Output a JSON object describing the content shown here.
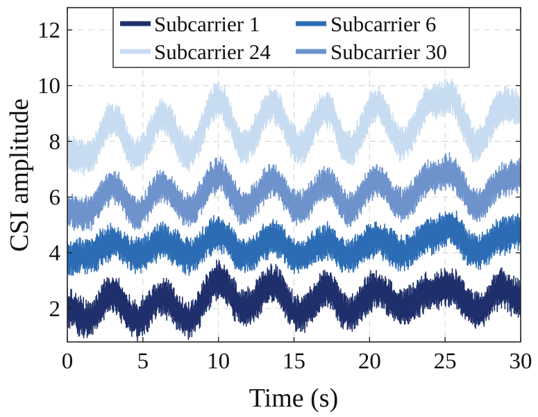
{
  "chart_data": {
    "type": "line",
    "title": "",
    "xlabel": "Time (s)",
    "ylabel": "CSI amplitude",
    "xlim": [
      0,
      30
    ],
    "ylim": [
      0.8,
      12.8
    ],
    "xticks": [
      0,
      5,
      10,
      15,
      20,
      25,
      30
    ],
    "yticks": [
      2,
      4,
      6,
      8,
      10,
      12
    ],
    "xtick_labels": [
      "0",
      "5",
      "10",
      "15",
      "20",
      "25",
      "30"
    ],
    "ytick_labels": [
      "2",
      "4",
      "6",
      "8",
      "10",
      "12"
    ],
    "grid": true,
    "legend_position": "top",
    "series": [
      {
        "name": "Subcarrier 1",
        "color": "#1f2f6b",
        "x": [
          0,
          1.3,
          3.0,
          4.6,
          6.3,
          8.0,
          10.0,
          11.7,
          13.6,
          15.3,
          17.2,
          18.6,
          20.5,
          22.2,
          24.0,
          25.3,
          27.1,
          28.8,
          30
        ],
        "center": [
          2.0,
          1.6,
          2.5,
          1.6,
          2.4,
          1.6,
          3.0,
          2.0,
          2.9,
          1.8,
          2.7,
          1.8,
          2.7,
          2.0,
          2.6,
          2.8,
          1.9,
          2.7,
          2.3
        ],
        "band_half_width": 0.7
      },
      {
        "name": "Subcarrier 6",
        "color": "#2b6cb5",
        "x": [
          0,
          1.3,
          3.0,
          4.6,
          6.3,
          8.0,
          10.0,
          11.7,
          13.6,
          15.3,
          17.2,
          18.6,
          20.5,
          22.2,
          24.0,
          25.3,
          27.1,
          28.8,
          30
        ],
        "center": [
          3.8,
          3.9,
          4.4,
          3.9,
          4.4,
          3.9,
          4.7,
          3.9,
          4.5,
          3.9,
          4.4,
          3.9,
          4.5,
          4.0,
          4.6,
          4.9,
          4.0,
          4.6,
          4.8
        ],
        "band_half_width": 0.65
      },
      {
        "name": "Subcarrier 24",
        "color": "#c7dcf0",
        "x": [
          0,
          1.3,
          3.0,
          4.6,
          6.3,
          8.0,
          10.0,
          11.7,
          13.6,
          15.3,
          17.2,
          18.6,
          20.5,
          22.2,
          24.0,
          25.3,
          27.1,
          28.8,
          30
        ],
        "center": [
          7.6,
          7.4,
          8.8,
          7.5,
          8.9,
          7.6,
          9.5,
          7.8,
          9.3,
          7.8,
          9.2,
          7.7,
          9.3,
          7.9,
          9.4,
          9.6,
          7.9,
          9.3,
          9.2
        ],
        "band_half_width": 0.65
      },
      {
        "name": "Subcarrier 30",
        "color": "#6e93cc",
        "x": [
          0,
          1.3,
          3.0,
          4.6,
          6.3,
          8.0,
          10.0,
          11.7,
          13.6,
          15.3,
          17.2,
          18.6,
          20.5,
          22.2,
          24.0,
          25.3,
          27.1,
          28.8,
          30
        ],
        "center": [
          5.5,
          5.4,
          6.4,
          5.4,
          6.4,
          5.5,
          6.8,
          5.6,
          6.6,
          5.6,
          6.5,
          5.6,
          6.6,
          5.7,
          6.7,
          6.9,
          5.7,
          6.6,
          6.8
        ],
        "band_half_width": 0.62
      }
    ],
    "legend_order": [
      "Subcarrier 1",
      "Subcarrier 6",
      "Subcarrier 24",
      "Subcarrier 30"
    ]
  }
}
